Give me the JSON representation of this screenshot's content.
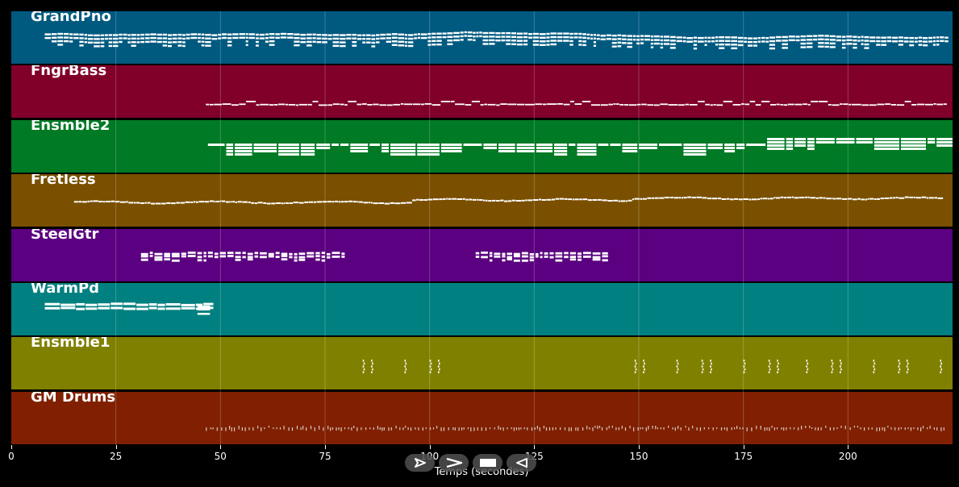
{
  "tracks": [
    {
      "name": "GrandPno",
      "color": "#005a80",
      "style": "dense",
      "start": 8,
      "end": 223.5
    },
    {
      "name": "FngrBass",
      "color": "#80002a",
      "style": "thinline",
      "start": 46.5,
      "end": 223.5
    },
    {
      "name": "Ensmble2",
      "color": "#007a25",
      "style": "chords",
      "start": 47,
      "end": 223
    },
    {
      "name": "Fretless",
      "color": "#7a5000",
      "style": "wave",
      "start": 15,
      "end": 222
    },
    {
      "name": "SteelGtr",
      "color": "#5a0080",
      "style": "clusters",
      "segments": [
        [
          31,
          79
        ],
        [
          111,
          143
        ]
      ]
    },
    {
      "name": "WarmPd",
      "color": "#008080",
      "style": "pad",
      "start": 8,
      "end": 47.5
    },
    {
      "name": "Ensmble1",
      "color": "#808000",
      "style": "ticks",
      "positions": [
        84,
        86,
        94,
        100,
        102,
        149,
        151,
        159,
        165,
        167,
        175,
        181,
        183,
        190,
        196,
        198,
        206,
        212,
        214,
        222
      ]
    },
    {
      "name": "GM Drums",
      "color": "#802000",
      "style": "drums",
      "start": 46.5,
      "end": 223.5
    }
  ],
  "axis": {
    "label": "Temps (secondes)",
    "ticks": [
      "0",
      "25",
      "50",
      "75",
      "100",
      "125",
      "150",
      "175",
      "200"
    ],
    "tick_values": [
      0,
      25,
      50,
      75,
      100,
      125,
      150,
      175,
      200
    ],
    "min": 0,
    "max": 225
  },
  "controls": [
    {
      "name": "play-icon",
      "label": "play"
    },
    {
      "name": "fast-forward-icon",
      "label": "forward"
    },
    {
      "name": "stop-icon",
      "label": "stop"
    },
    {
      "name": "rewind-icon",
      "label": "back"
    }
  ]
}
